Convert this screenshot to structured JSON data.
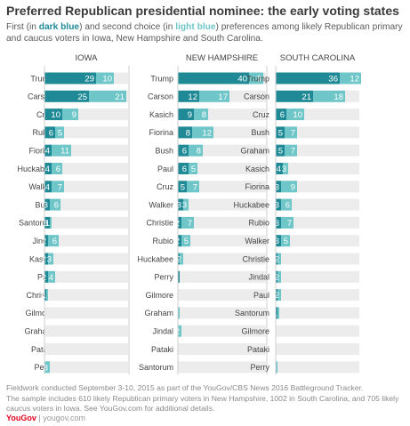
{
  "title": "Preferred Republican presidential nominee: the early voting states",
  "subtitle": {
    "part1": "First (in ",
    "dark_label": "dark blue",
    "part2": ") and second choice (in ",
    "light_label": "light blue",
    "part3": ") preferences among likely Republican primary and caucus voters in Iowa, New Hampshire and South Carolina."
  },
  "footer": {
    "line1": "Fieldwork conducted September 3-10, 2015 as part of the YouGov/CBS News 2016 Battleground Tracker.",
    "line2": "The sample includes 610 likely Republican primary voters in New Hampshire, 1002 in South Carolina, and 705 likely caucus voters in Iowa. See YouGov.com for additional details."
  },
  "brand": {
    "logo": "YouGov",
    "separator": " | ",
    "site": "yougov.com"
  },
  "colors": {
    "first": "#1f8a96",
    "second": "#6fc6c9",
    "track": "#ececec",
    "divider": "#cfcfcf",
    "text": "#444444"
  },
  "chart_data": [
    {
      "type": "bar",
      "stacked": true,
      "orientation": "horizontal",
      "title": "IOWA",
      "series_names": [
        "First choice",
        "Second choice"
      ],
      "rows": [
        {
          "label": "Trump",
          "first": 29,
          "second": 10
        },
        {
          "label": "Carson",
          "first": 25,
          "second": 21
        },
        {
          "label": "Cruz",
          "first": 10,
          "second": 9
        },
        {
          "label": "Rubio",
          "first": 6,
          "second": 5
        },
        {
          "label": "Fiorina",
          "first": 4,
          "second": 11
        },
        {
          "label": "Huckabee",
          "first": 4,
          "second": 6
        },
        {
          "label": "Walker",
          "first": 4,
          "second": 7
        },
        {
          "label": "Bush",
          "first": 3,
          "second": 6
        },
        {
          "label": "Santorum",
          "first": 3,
          "second": 1
        },
        {
          "label": "Jindal",
          "first": 2,
          "second": 6
        },
        {
          "label": "Kasich",
          "first": 2,
          "second": 3
        },
        {
          "label": "Paul",
          "first": 2,
          "second": 4
        },
        {
          "label": "Christie",
          "first": 1,
          "second": 1
        },
        {
          "label": "Gilmore",
          "first": 0,
          "second": 0
        },
        {
          "label": "Graham",
          "first": 0,
          "second": 0
        },
        {
          "label": "Pataki",
          "first": 0,
          "second": 0
        },
        {
          "label": "Perry",
          "first": 0,
          "second": 3
        }
      ]
    },
    {
      "type": "bar",
      "stacked": true,
      "orientation": "horizontal",
      "title": "NEW HAMPSHIRE",
      "series_names": [
        "First choice",
        "Second choice"
      ],
      "rows": [
        {
          "label": "Trump",
          "first": 40,
          "second": 8
        },
        {
          "label": "Carson",
          "first": 12,
          "second": 17
        },
        {
          "label": "Kasich",
          "first": 9,
          "second": 8
        },
        {
          "label": "Fiorina",
          "first": 8,
          "second": 12
        },
        {
          "label": "Bush",
          "first": 6,
          "second": 8
        },
        {
          "label": "Paul",
          "first": 6,
          "second": 5
        },
        {
          "label": "Cruz",
          "first": 5,
          "second": 7
        },
        {
          "label": "Walker",
          "first": 3,
          "second": 3
        },
        {
          "label": "Christie",
          "first": 2,
          "second": 7
        },
        {
          "label": "Rubio",
          "first": 2,
          "second": 5
        },
        {
          "label": "Huckabee",
          "first": 1,
          "second": 2
        },
        {
          "label": "Perry",
          "first": 1,
          "second": 0
        },
        {
          "label": "Gilmore",
          "first": 0,
          "second": 0
        },
        {
          "label": "Graham",
          "first": 0,
          "second": 1
        },
        {
          "label": "Jindal",
          "first": 0,
          "second": 2
        },
        {
          "label": "Pataki",
          "first": 0,
          "second": 0
        },
        {
          "label": "Santorum",
          "first": 0,
          "second": 0
        }
      ]
    },
    {
      "type": "bar",
      "stacked": true,
      "orientation": "horizontal",
      "title": "SOUTH CAROLINA",
      "series_names": [
        "First choice",
        "Second choice"
      ],
      "rows": [
        {
          "label": "Trump",
          "first": 36,
          "second": 12
        },
        {
          "label": "Carson",
          "first": 21,
          "second": 18
        },
        {
          "label": "Cruz",
          "first": 6,
          "second": 10
        },
        {
          "label": "Bush",
          "first": 5,
          "second": 7
        },
        {
          "label": "Graham",
          "first": 5,
          "second": 7
        },
        {
          "label": "Kasich",
          "first": 4,
          "second": 3
        },
        {
          "label": "Fiorina",
          "first": 3,
          "second": 9
        },
        {
          "label": "Huckabee",
          "first": 3,
          "second": 6
        },
        {
          "label": "Rubio",
          "first": 3,
          "second": 7
        },
        {
          "label": "Walker",
          "first": 3,
          "second": 5
        },
        {
          "label": "Christie",
          "first": 1,
          "second": 2
        },
        {
          "label": "Jindal",
          "first": 1,
          "second": 2
        },
        {
          "label": "Paul",
          "first": 1,
          "second": 2
        },
        {
          "label": "Santorum",
          "first": 1,
          "second": 1
        },
        {
          "label": "Gilmore",
          "first": 0,
          "second": 0
        },
        {
          "label": "Pataki",
          "first": 0,
          "second": 0
        },
        {
          "label": "Perry",
          "first": 0,
          "second": 1
        }
      ]
    }
  ]
}
